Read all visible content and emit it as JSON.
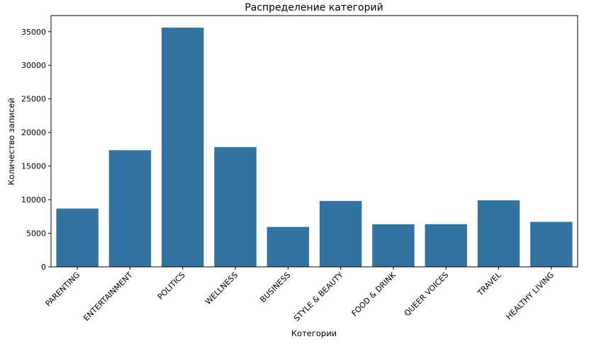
{
  "chart_data": {
    "type": "bar",
    "title": "Распределение категорий",
    "xlabel": "Котегории",
    "ylabel": "Количество записей",
    "categories": [
      "PARENTING",
      "ENTERTAINMENT",
      "POLITICS",
      "WELLNESS",
      "BUSINESS",
      "STYLE & BEAUTY",
      "FOOD & DRINK",
      "QUEER VOICES",
      "TRAVEL",
      "HEALTHY LIVING"
    ],
    "values": [
      8677,
      17362,
      35602,
      17827,
      5937,
      9814,
      6340,
      6347,
      9900,
      6694
    ],
    "ylim": [
      0,
      37400
    ],
    "yticks": [
      0,
      5000,
      10000,
      15000,
      20000,
      25000,
      30000,
      35000
    ],
    "bar_color": "#3274a1",
    "grid": false,
    "legend": "none"
  }
}
